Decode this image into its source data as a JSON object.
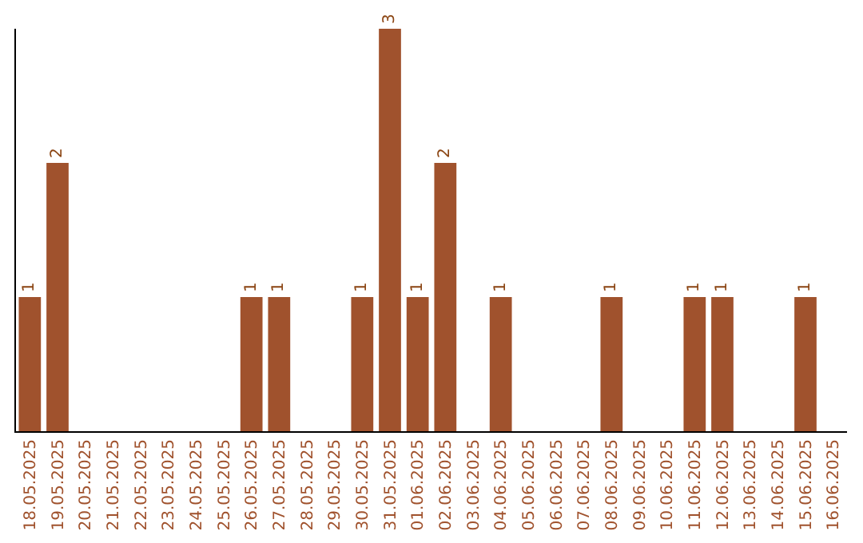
{
  "chart_data": {
    "type": "bar",
    "categories": [
      "18.05.2025",
      "19.05.2025",
      "20.05.2025",
      "21.05.2025",
      "22.05.2025",
      "23.05.2025",
      "24.05.2025",
      "25.05.2025",
      "26.05.2025",
      "27.05.2025",
      "28.05.2025",
      "29.05.2025",
      "30.05.2025",
      "31.05.2025",
      "01.06.2025",
      "02.06.2025",
      "03.06.2025",
      "04.06.2025",
      "05.06.2025",
      "06.06.2025",
      "07.06.2025",
      "08.06.2025",
      "09.06.2025",
      "10.06.2025",
      "11.06.2025",
      "12.06.2025",
      "13.06.2025",
      "14.06.2025",
      "15.06.2025",
      "16.06.2025"
    ],
    "values": [
      1,
      2,
      0,
      0,
      0,
      0,
      0,
      0,
      1,
      1,
      0,
      0,
      1,
      3,
      1,
      2,
      0,
      1,
      0,
      0,
      0,
      1,
      0,
      0,
      1,
      1,
      0,
      0,
      1,
      0
    ],
    "value_labels": [
      "1",
      "2",
      null,
      null,
      null,
      null,
      null,
      null,
      "1",
      "1",
      null,
      null,
      "1",
      "3",
      "1",
      "2",
      null,
      "1",
      null,
      null,
      null,
      "1",
      null,
      null,
      "1",
      "1",
      null,
      null,
      "1",
      null
    ],
    "color": "#a0522d",
    "ylim": [
      0,
      3
    ],
    "tick_labels": "x"
  }
}
